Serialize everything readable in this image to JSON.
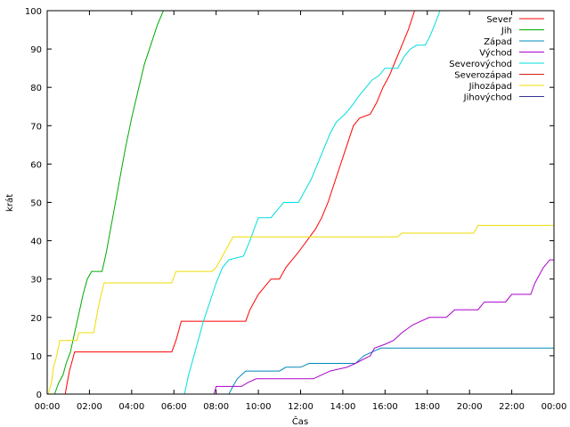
{
  "chart_data": {
    "type": "line",
    "xlabel": "Čas",
    "ylabel": "krát",
    "xlim": [
      0,
      24
    ],
    "ylim": [
      0,
      100
    ],
    "x_ticks": [
      {
        "value": 0,
        "label": "00:00"
      },
      {
        "value": 2,
        "label": "02:00"
      },
      {
        "value": 4,
        "label": "04:00"
      },
      {
        "value": 6,
        "label": "06:00"
      },
      {
        "value": 8,
        "label": "08:00"
      },
      {
        "value": 10,
        "label": "10:00"
      },
      {
        "value": 12,
        "label": "12:00"
      },
      {
        "value": 14,
        "label": "14:00"
      },
      {
        "value": 16,
        "label": "16:00"
      },
      {
        "value": 18,
        "label": "18:00"
      },
      {
        "value": 20,
        "label": "20:00"
      },
      {
        "value": 22,
        "label": "22:00"
      },
      {
        "value": 24,
        "label": "00:00"
      }
    ],
    "y_ticks": [
      0,
      10,
      20,
      30,
      40,
      50,
      60,
      70,
      80,
      90,
      100
    ],
    "grid": false,
    "legend_position": "top-right",
    "series": [
      {
        "name": "Sever",
        "color": "#ff0000",
        "points": [
          [
            0.85,
            0
          ],
          [
            0.95,
            3
          ],
          [
            1.05,
            6
          ],
          [
            1.15,
            8
          ],
          [
            1.3,
            11
          ],
          [
            3.0,
            11
          ],
          [
            5.9,
            11
          ],
          [
            6.1,
            14
          ],
          [
            6.25,
            17
          ],
          [
            6.35,
            19
          ],
          [
            9.4,
            19
          ],
          [
            9.6,
            22
          ],
          [
            9.8,
            24
          ],
          [
            10.0,
            26
          ],
          [
            10.3,
            28
          ],
          [
            10.6,
            30
          ],
          [
            11.0,
            30
          ],
          [
            11.3,
            33
          ],
          [
            11.6,
            35
          ],
          [
            11.9,
            37
          ],
          [
            12.3,
            40
          ],
          [
            12.7,
            43
          ],
          [
            13.0,
            46
          ],
          [
            13.3,
            50
          ],
          [
            13.6,
            55
          ],
          [
            13.9,
            60
          ],
          [
            14.2,
            65
          ],
          [
            14.5,
            70
          ],
          [
            14.8,
            72
          ],
          [
            15.3,
            73
          ],
          [
            15.6,
            76
          ],
          [
            15.9,
            80
          ],
          [
            16.2,
            83
          ],
          [
            16.5,
            87
          ],
          [
            16.8,
            91
          ],
          [
            17.1,
            95
          ],
          [
            17.4,
            100
          ]
        ]
      },
      {
        "name": "Jih",
        "color": "#00aa00",
        "points": [
          [
            0.35,
            0
          ],
          [
            0.55,
            3
          ],
          [
            0.75,
            5
          ],
          [
            0.9,
            8
          ],
          [
            1.1,
            11
          ],
          [
            1.3,
            16
          ],
          [
            1.5,
            21
          ],
          [
            1.7,
            26
          ],
          [
            1.9,
            30
          ],
          [
            2.1,
            32
          ],
          [
            2.6,
            32
          ],
          [
            2.8,
            37
          ],
          [
            3.1,
            46
          ],
          [
            3.4,
            55
          ],
          [
            3.7,
            64
          ],
          [
            4.0,
            72
          ],
          [
            4.3,
            79
          ],
          [
            4.6,
            86
          ],
          [
            4.9,
            91
          ],
          [
            5.2,
            96
          ],
          [
            5.5,
            100
          ]
        ]
      },
      {
        "name": "Západ",
        "color": "#0088bb",
        "points": [
          [
            8.6,
            0
          ],
          [
            8.8,
            2
          ],
          [
            9.0,
            4
          ],
          [
            9.4,
            6
          ],
          [
            11.0,
            6
          ],
          [
            11.3,
            7
          ],
          [
            12.0,
            7
          ],
          [
            12.4,
            8
          ],
          [
            14.6,
            8
          ],
          [
            15.0,
            10
          ],
          [
            15.4,
            11
          ],
          [
            15.8,
            12
          ],
          [
            18.0,
            12
          ],
          [
            24.0,
            12
          ]
        ]
      },
      {
        "name": "Východ",
        "color": "#aa00cc",
        "points": [
          [
            7.9,
            0
          ],
          [
            8.0,
            2
          ],
          [
            9.2,
            2
          ],
          [
            9.5,
            3
          ],
          [
            9.9,
            4
          ],
          [
            12.6,
            4
          ],
          [
            13.0,
            5
          ],
          [
            13.4,
            6
          ],
          [
            14.2,
            7
          ],
          [
            14.6,
            8
          ],
          [
            15.3,
            10
          ],
          [
            15.5,
            12
          ],
          [
            16.0,
            13
          ],
          [
            16.4,
            14
          ],
          [
            16.8,
            16
          ],
          [
            17.3,
            18
          ],
          [
            17.7,
            19
          ],
          [
            18.1,
            20
          ],
          [
            18.9,
            20
          ],
          [
            19.3,
            22
          ],
          [
            20.4,
            22
          ],
          [
            20.7,
            24
          ],
          [
            21.7,
            24
          ],
          [
            22.0,
            26
          ],
          [
            22.9,
            26
          ],
          [
            23.1,
            29
          ],
          [
            23.3,
            31
          ],
          [
            23.5,
            33
          ],
          [
            23.8,
            35
          ],
          [
            24.0,
            35
          ]
        ]
      },
      {
        "name": "Severovýchod",
        "color": "#00dddd",
        "points": [
          [
            6.5,
            0
          ],
          [
            6.7,
            5
          ],
          [
            6.9,
            9
          ],
          [
            7.1,
            13
          ],
          [
            7.4,
            19
          ],
          [
            7.7,
            24
          ],
          [
            8.0,
            29
          ],
          [
            8.3,
            33
          ],
          [
            8.6,
            35
          ],
          [
            9.3,
            36
          ],
          [
            9.6,
            40
          ],
          [
            9.8,
            43
          ],
          [
            10.0,
            46
          ],
          [
            10.6,
            46
          ],
          [
            10.9,
            48
          ],
          [
            11.2,
            50
          ],
          [
            11.9,
            50
          ],
          [
            12.2,
            53
          ],
          [
            12.5,
            56
          ],
          [
            12.8,
            60
          ],
          [
            13.1,
            64
          ],
          [
            13.4,
            68
          ],
          [
            13.7,
            71
          ],
          [
            14.1,
            73
          ],
          [
            14.4,
            75
          ],
          [
            14.8,
            78
          ],
          [
            15.1,
            80
          ],
          [
            15.4,
            82
          ],
          [
            15.7,
            83
          ],
          [
            16.0,
            85
          ],
          [
            16.6,
            85
          ],
          [
            16.9,
            88
          ],
          [
            17.2,
            90
          ],
          [
            17.5,
            91
          ],
          [
            17.9,
            91
          ],
          [
            18.1,
            93
          ],
          [
            18.4,
            97
          ],
          [
            18.6,
            100
          ]
        ]
      },
      {
        "name": "Severozápad",
        "color": "#d02020",
        "points": []
      },
      {
        "name": "Jihozápad",
        "color": "#eedd00",
        "points": [
          [
            0.05,
            0
          ],
          [
            0.2,
            3
          ],
          [
            0.3,
            7
          ],
          [
            0.45,
            10
          ],
          [
            0.6,
            14
          ],
          [
            1.4,
            14
          ],
          [
            1.5,
            16
          ],
          [
            2.2,
            16
          ],
          [
            2.4,
            22
          ],
          [
            2.55,
            26
          ],
          [
            2.7,
            29
          ],
          [
            5.9,
            29
          ],
          [
            6.1,
            32
          ],
          [
            7.8,
            32
          ],
          [
            8.0,
            33
          ],
          [
            8.2,
            35
          ],
          [
            8.4,
            37
          ],
          [
            8.6,
            39
          ],
          [
            8.8,
            41
          ],
          [
            16.6,
            41
          ],
          [
            16.8,
            42
          ],
          [
            20.2,
            42
          ],
          [
            20.4,
            44
          ],
          [
            24.0,
            44
          ]
        ]
      },
      {
        "name": "Jihovýchod",
        "color": "#333399",
        "points": []
      }
    ]
  }
}
